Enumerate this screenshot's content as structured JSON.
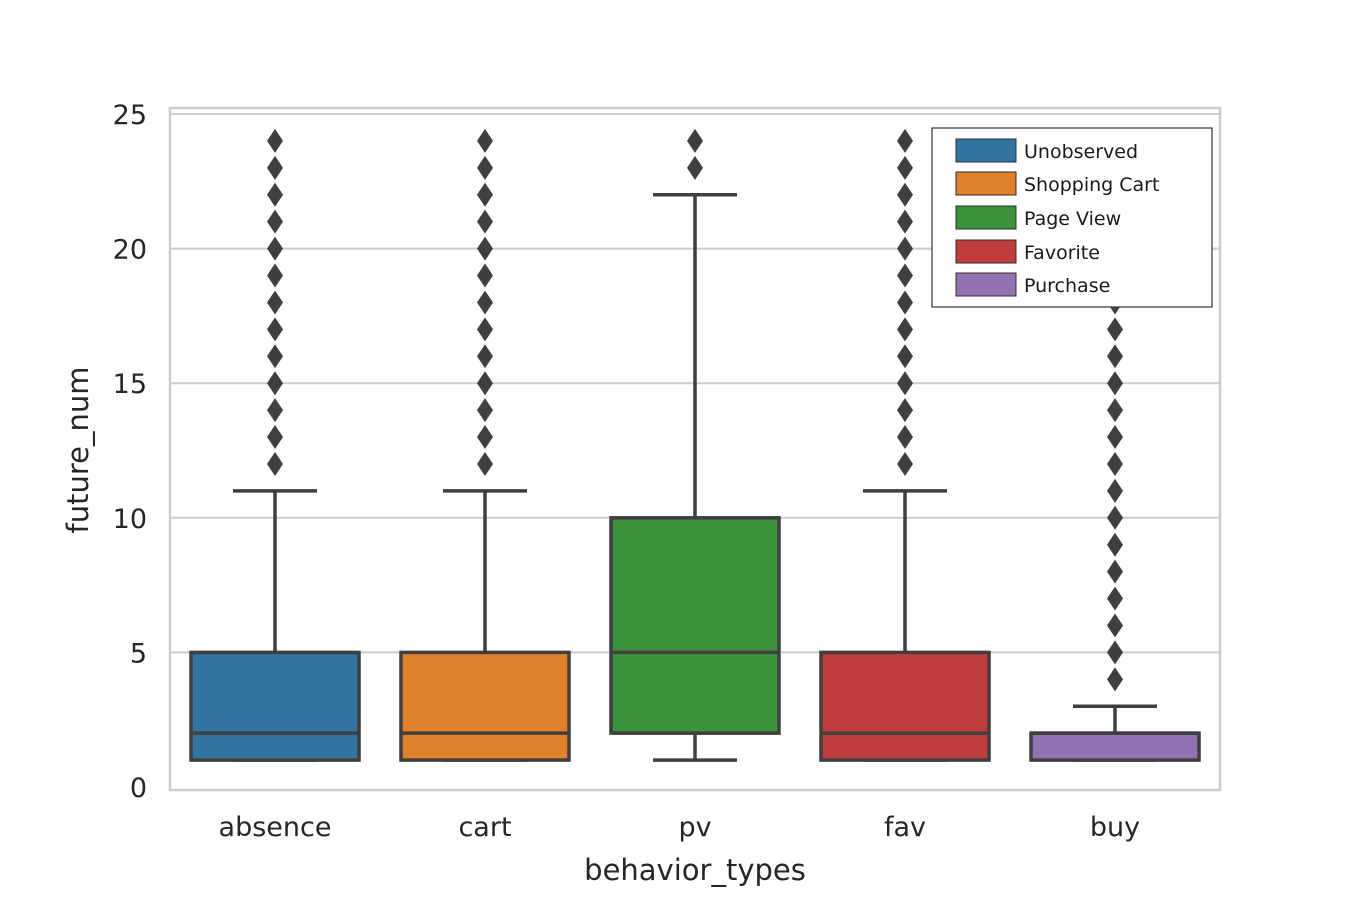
{
  "chart_data": {
    "type": "box",
    "xlabel": "behavior_types",
    "ylabel": "future_num",
    "ylim": [
      0,
      25
    ],
    "yticks": [
      0,
      5,
      10,
      15,
      20,
      25
    ],
    "grid": "horizontal",
    "legend_position": "top-right",
    "categories": [
      "absence",
      "cart",
      "pv",
      "fav",
      "buy"
    ],
    "boxes": [
      {
        "category": "absence",
        "q1": 1,
        "median": 2,
        "q3": 5,
        "whisker_low": 1,
        "whisker_high": 11,
        "outliers": [
          12,
          13,
          14,
          15,
          16,
          17,
          18,
          19,
          20,
          21,
          22,
          23,
          24
        ],
        "color": "#3274a1"
      },
      {
        "category": "cart",
        "q1": 1,
        "median": 2,
        "q3": 5,
        "whisker_low": 1,
        "whisker_high": 11,
        "outliers": [
          12,
          13,
          14,
          15,
          16,
          17,
          18,
          19,
          20,
          21,
          22,
          23,
          24
        ],
        "color": "#e1812c"
      },
      {
        "category": "pv",
        "q1": 2,
        "median": 5,
        "q3": 10,
        "whisker_low": 1,
        "whisker_high": 22,
        "outliers": [
          23,
          24
        ],
        "color": "#3a923a"
      },
      {
        "category": "fav",
        "q1": 1,
        "median": 2,
        "q3": 5,
        "whisker_low": 1,
        "whisker_high": 11,
        "outliers": [
          12,
          13,
          14,
          15,
          16,
          17,
          18,
          19,
          20,
          21,
          22,
          23,
          24
        ],
        "color": "#c03d3e"
      },
      {
        "category": "buy",
        "q1": 1,
        "median": 2,
        "q3": 2,
        "whisker_low": 1,
        "whisker_high": 3,
        "outliers": [
          4,
          5,
          6,
          7,
          8,
          9,
          10,
          11,
          12,
          13,
          14,
          15,
          16,
          17,
          18,
          19,
          20,
          21,
          22,
          23,
          24
        ],
        "color": "#9372b2"
      }
    ],
    "legend": [
      {
        "label": "Unobserved",
        "color": "#3274a1"
      },
      {
        "label": "Shopping Cart",
        "color": "#e1812c"
      },
      {
        "label": "Page View",
        "color": "#3a923a"
      },
      {
        "label": "Favorite",
        "color": "#c03d3e"
      },
      {
        "label": "Purchase",
        "color": "#9372b2"
      }
    ]
  }
}
